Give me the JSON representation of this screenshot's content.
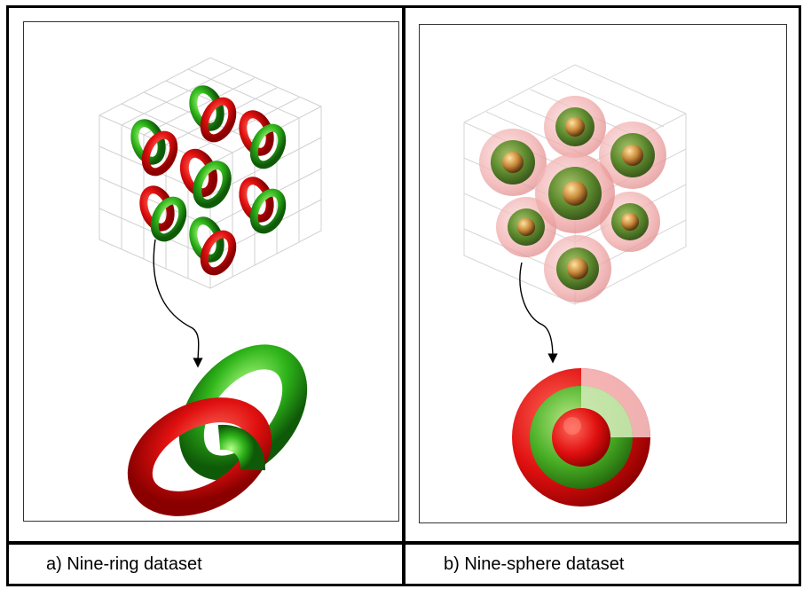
{
  "figure": {
    "panel_a": {
      "caption": "a)  Nine-ring dataset"
    },
    "panel_b": {
      "caption": "b)  Nine-sphere dataset"
    }
  },
  "colors": {
    "red": "#e01010",
    "green": "#2fb51a",
    "pink_shell": "#f2b5b5",
    "core": "#c98a3a",
    "grid": "#d0d0d0",
    "border": "#000000"
  }
}
